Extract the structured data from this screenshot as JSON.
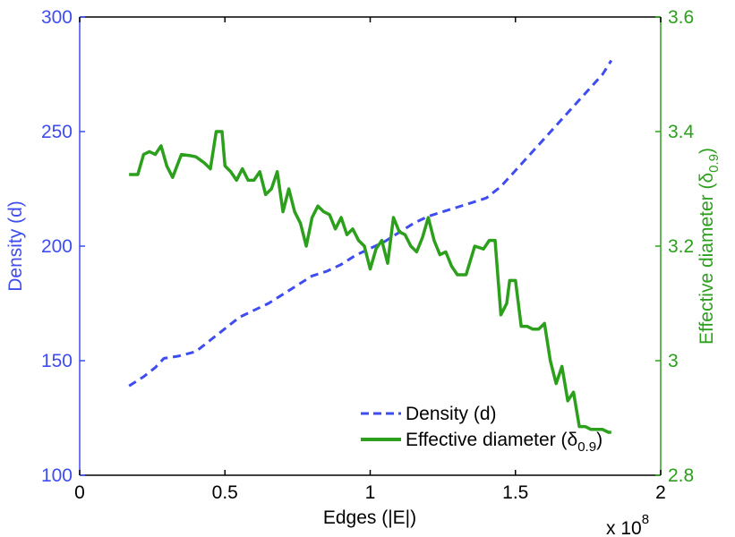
{
  "chart_data": {
    "type": "line",
    "xlabel": "Edges (|E|)",
    "x_multiplier_label": "x 10",
    "x_multiplier_exponent": "8",
    "xlim": [
      0,
      2
    ],
    "x_ticks": [
      "0",
      "0.5",
      "1",
      "1.5",
      "2"
    ],
    "y_left": {
      "label": "Density (d)",
      "lim": [
        100,
        300
      ],
      "ticks": [
        "100",
        "150",
        "200",
        "250",
        "300"
      ],
      "color": "#3e4cf0"
    },
    "y_right": {
      "label_prefix": "Effective diameter (δ",
      "label_sub": "0.9",
      "label_suffix": ")",
      "lim": [
        2.8,
        3.6
      ],
      "ticks": [
        "2.8",
        "3",
        "3.2",
        "3.4",
        "3.6"
      ],
      "color": "#2ca01c"
    },
    "legend_position": "bottom-right",
    "series": [
      {
        "name": "Density (d)",
        "axis": "left",
        "style": "dashed",
        "color": "#3e4cf0",
        "x": [
          0.17,
          0.22,
          0.26,
          0.29,
          0.34,
          0.4,
          0.45,
          0.5,
          0.55,
          0.6,
          0.65,
          0.7,
          0.75,
          0.8,
          0.85,
          0.9,
          0.95,
          1.0,
          1.05,
          1.1,
          1.15,
          1.2,
          1.25,
          1.3,
          1.35,
          1.4,
          1.45,
          1.5,
          1.55,
          1.6,
          1.65,
          1.7,
          1.75,
          1.8,
          1.83
        ],
        "values": [
          139,
          143,
          147,
          151,
          152,
          154,
          159,
          164,
          169,
          172,
          175,
          179,
          183,
          187,
          189,
          192,
          196,
          199,
          202,
          206,
          210,
          213,
          215,
          217,
          219,
          221,
          226,
          233,
          240,
          247,
          254,
          261,
          268,
          275,
          281
        ]
      },
      {
        "name": "Effective diameter (δ0.9)",
        "axis": "right",
        "style": "solid",
        "color": "#2ca01c",
        "x": [
          0.17,
          0.2,
          0.22,
          0.24,
          0.26,
          0.28,
          0.3,
          0.32,
          0.35,
          0.38,
          0.4,
          0.43,
          0.45,
          0.47,
          0.49,
          0.5,
          0.52,
          0.54,
          0.56,
          0.58,
          0.6,
          0.62,
          0.64,
          0.66,
          0.68,
          0.7,
          0.72,
          0.74,
          0.76,
          0.78,
          0.8,
          0.82,
          0.84,
          0.86,
          0.88,
          0.9,
          0.92,
          0.94,
          0.96,
          0.98,
          1.0,
          1.02,
          1.04,
          1.06,
          1.08,
          1.1,
          1.12,
          1.14,
          1.16,
          1.18,
          1.2,
          1.22,
          1.24,
          1.26,
          1.28,
          1.3,
          1.33,
          1.36,
          1.39,
          1.41,
          1.43,
          1.45,
          1.47,
          1.48,
          1.5,
          1.52,
          1.54,
          1.56,
          1.58,
          1.6,
          1.62,
          1.64,
          1.66,
          1.68,
          1.7,
          1.72,
          1.74,
          1.76,
          1.78,
          1.8,
          1.82,
          1.83
        ],
        "values": [
          3.325,
          3.325,
          3.36,
          3.365,
          3.36,
          3.375,
          3.34,
          3.32,
          3.36,
          3.358,
          3.356,
          3.345,
          3.335,
          3.4,
          3.4,
          3.34,
          3.33,
          3.315,
          3.335,
          3.315,
          3.315,
          3.33,
          3.29,
          3.3,
          3.33,
          3.26,
          3.3,
          3.26,
          3.24,
          3.2,
          3.25,
          3.27,
          3.26,
          3.255,
          3.23,
          3.25,
          3.22,
          3.23,
          3.21,
          3.2,
          3.16,
          3.195,
          3.21,
          3.17,
          3.25,
          3.225,
          3.22,
          3.2,
          3.19,
          3.215,
          3.25,
          3.21,
          3.185,
          3.19,
          3.165,
          3.15,
          3.15,
          3.2,
          3.195,
          3.21,
          3.21,
          3.08,
          3.1,
          3.14,
          3.14,
          3.06,
          3.06,
          3.055,
          3.055,
          3.065,
          3.0,
          2.96,
          2.99,
          2.93,
          2.945,
          2.885,
          2.885,
          2.88,
          2.88,
          2.88,
          2.875,
          2.875
        ]
      }
    ]
  }
}
